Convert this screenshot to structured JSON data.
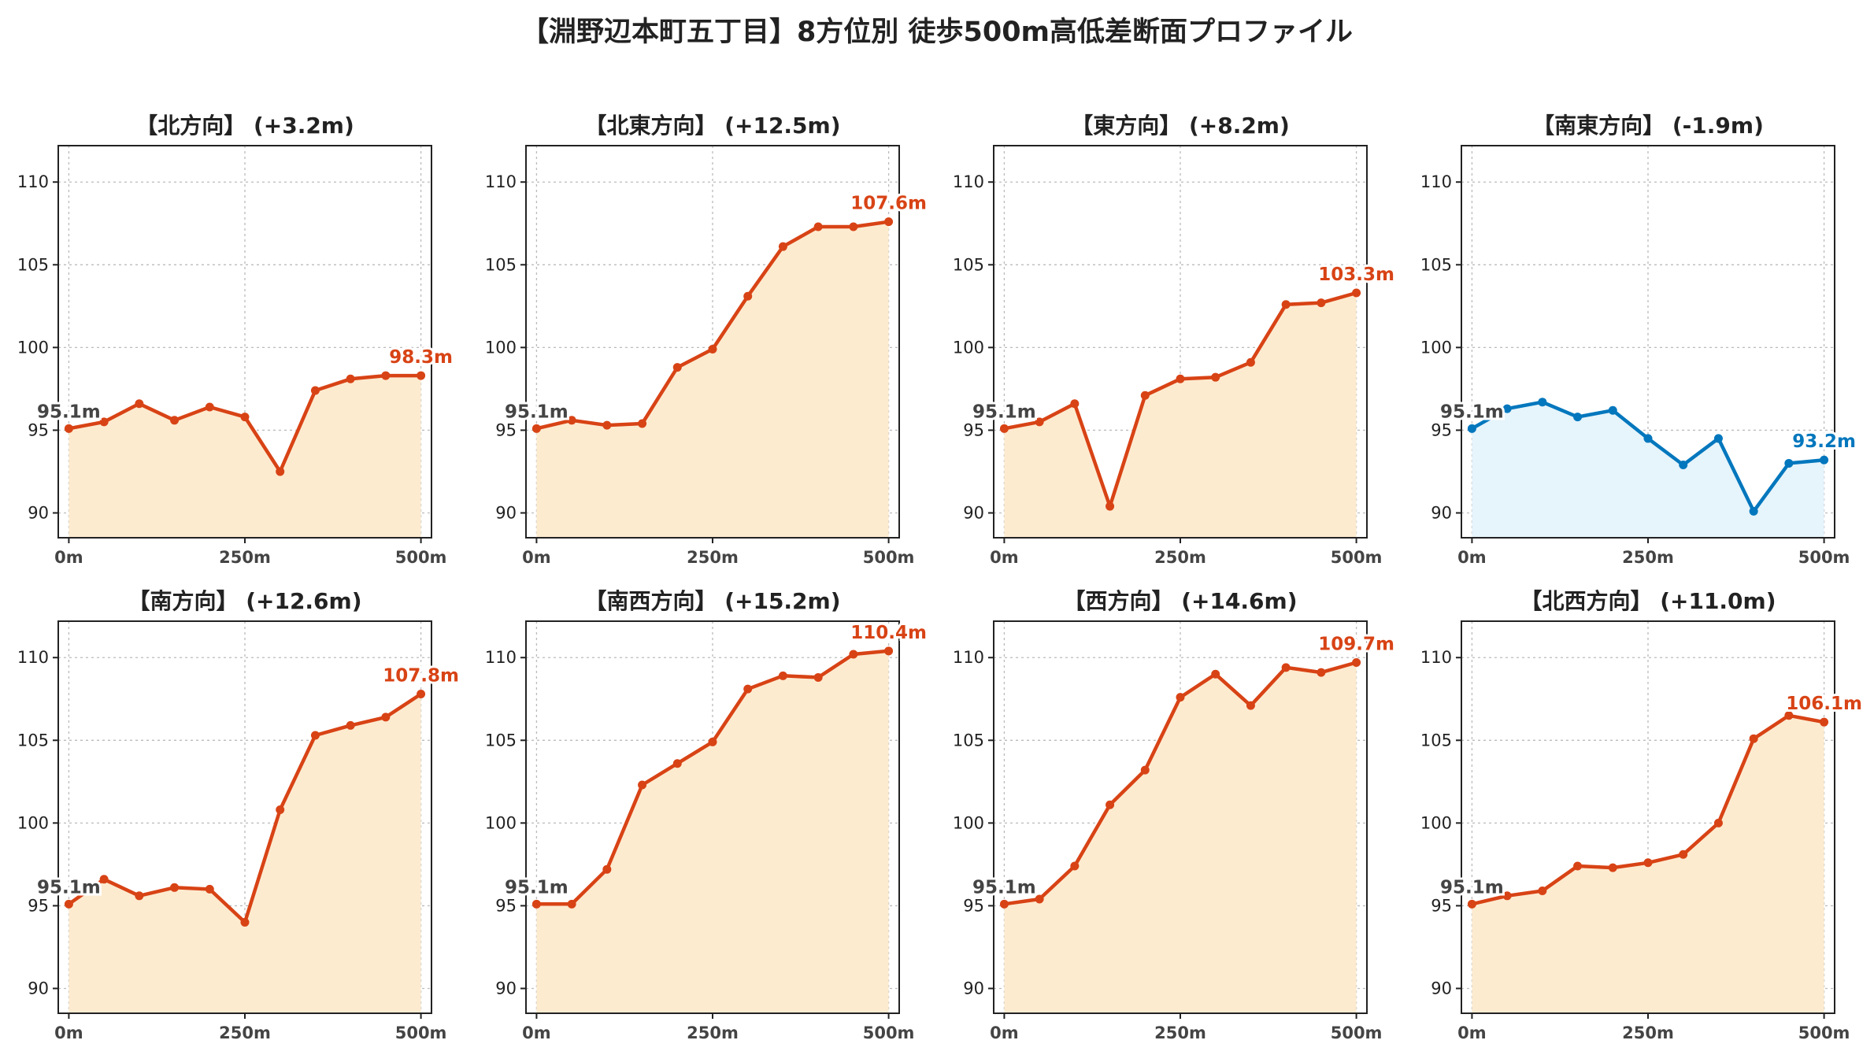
{
  "title": "【淵野辺本町五丁目】8方位別 徒歩500m高低差断面プロファイル",
  "colors": {
    "up_line": "#d84315",
    "up_fill": "#fdebd0",
    "down_line": "#0277bd",
    "down_fill": "#e6f4fb",
    "start_label": "#444444"
  },
  "chart_data": [
    {
      "type": "area",
      "title": "【北方向】 (+3.2m)",
      "x": [
        0,
        50,
        100,
        150,
        200,
        250,
        300,
        350,
        400,
        450,
        500
      ],
      "x_tick_values": [
        0,
        250,
        500
      ],
      "x_tick_labels": [
        "0m",
        "250m",
        "500m"
      ],
      "y_tick_values": [
        90,
        95,
        100,
        105,
        110
      ],
      "y_tick_labels": [
        "90",
        "95",
        "100",
        "105",
        "110"
      ],
      "xlim": [
        -15,
        515
      ],
      "ylim": [
        88.5,
        112.2
      ],
      "grid": true,
      "trend": "up",
      "values": [
        95.1,
        95.5,
        96.6,
        95.6,
        96.4,
        95.8,
        92.5,
        97.4,
        98.1,
        98.3,
        98.3
      ],
      "start_label": "95.1m",
      "end_label": "98.3m"
    },
    {
      "type": "area",
      "title": "【北東方向】 (+12.5m)",
      "x": [
        0,
        50,
        100,
        150,
        200,
        250,
        300,
        350,
        400,
        450,
        500
      ],
      "x_tick_values": [
        0,
        250,
        500
      ],
      "x_tick_labels": [
        "0m",
        "250m",
        "500m"
      ],
      "y_tick_values": [
        90,
        95,
        100,
        105,
        110
      ],
      "y_tick_labels": [
        "90",
        "95",
        "100",
        "105",
        "110"
      ],
      "xlim": [
        -15,
        515
      ],
      "ylim": [
        88.5,
        112.2
      ],
      "grid": true,
      "trend": "up",
      "values": [
        95.1,
        95.6,
        95.3,
        95.4,
        98.8,
        99.9,
        103.1,
        106.1,
        107.3,
        107.3,
        107.6
      ],
      "start_label": "95.1m",
      "end_label": "107.6m"
    },
    {
      "type": "area",
      "title": "【東方向】 (+8.2m)",
      "x": [
        0,
        50,
        100,
        150,
        200,
        250,
        300,
        350,
        400,
        450,
        500
      ],
      "x_tick_values": [
        0,
        250,
        500
      ],
      "x_tick_labels": [
        "0m",
        "250m",
        "500m"
      ],
      "y_tick_values": [
        90,
        95,
        100,
        105,
        110
      ],
      "y_tick_labels": [
        "90",
        "95",
        "100",
        "105",
        "110"
      ],
      "xlim": [
        -15,
        515
      ],
      "ylim": [
        88.5,
        112.2
      ],
      "grid": true,
      "trend": "up",
      "values": [
        95.1,
        95.5,
        96.6,
        90.4,
        97.1,
        98.1,
        98.2,
        99.1,
        102.6,
        102.7,
        103.3
      ],
      "start_label": "95.1m",
      "end_label": "103.3m"
    },
    {
      "type": "area",
      "title": "【南東方向】 (-1.9m)",
      "x": [
        0,
        50,
        100,
        150,
        200,
        250,
        300,
        350,
        400,
        450,
        500
      ],
      "x_tick_values": [
        0,
        250,
        500
      ],
      "x_tick_labels": [
        "0m",
        "250m",
        "500m"
      ],
      "y_tick_values": [
        90,
        95,
        100,
        105,
        110
      ],
      "y_tick_labels": [
        "90",
        "95",
        "100",
        "105",
        "110"
      ],
      "xlim": [
        -15,
        515
      ],
      "ylim": [
        88.5,
        112.2
      ],
      "grid": true,
      "trend": "down",
      "values": [
        95.1,
        96.3,
        96.7,
        95.8,
        96.2,
        94.5,
        92.9,
        94.5,
        90.1,
        93.0,
        93.2
      ],
      "start_label": "95.1m",
      "end_label": "93.2m"
    },
    {
      "type": "area",
      "title": "【南方向】 (+12.6m)",
      "x": [
        0,
        50,
        100,
        150,
        200,
        250,
        300,
        350,
        400,
        450,
        500
      ],
      "x_tick_values": [
        0,
        250,
        500
      ],
      "x_tick_labels": [
        "0m",
        "250m",
        "500m"
      ],
      "y_tick_values": [
        90,
        95,
        100,
        105,
        110
      ],
      "y_tick_labels": [
        "90",
        "95",
        "100",
        "105",
        "110"
      ],
      "xlim": [
        -15,
        515
      ],
      "ylim": [
        88.5,
        112.2
      ],
      "grid": true,
      "trend": "up",
      "values": [
        95.1,
        96.6,
        95.6,
        96.1,
        96.0,
        94.0,
        100.8,
        105.3,
        105.9,
        106.4,
        107.8
      ],
      "start_label": "95.1m",
      "end_label": "107.8m"
    },
    {
      "type": "area",
      "title": "【南西方向】 (+15.2m)",
      "x": [
        0,
        50,
        100,
        150,
        200,
        250,
        300,
        350,
        400,
        450,
        500
      ],
      "x_tick_values": [
        0,
        250,
        500
      ],
      "x_tick_labels": [
        "0m",
        "250m",
        "500m"
      ],
      "y_tick_values": [
        90,
        95,
        100,
        105,
        110
      ],
      "y_tick_labels": [
        "90",
        "95",
        "100",
        "105",
        "110"
      ],
      "xlim": [
        -15,
        515
      ],
      "ylim": [
        88.5,
        112.2
      ],
      "grid": true,
      "trend": "up",
      "values": [
        95.1,
        95.1,
        97.2,
        102.3,
        103.6,
        104.9,
        108.1,
        108.9,
        108.8,
        110.2,
        110.4
      ],
      "start_label": "95.1m",
      "end_label": "110.4m"
    },
    {
      "type": "area",
      "title": "【西方向】 (+14.6m)",
      "x": [
        0,
        50,
        100,
        150,
        200,
        250,
        300,
        350,
        400,
        450,
        500
      ],
      "x_tick_values": [
        0,
        250,
        500
      ],
      "x_tick_labels": [
        "0m",
        "250m",
        "500m"
      ],
      "y_tick_values": [
        90,
        95,
        100,
        105,
        110
      ],
      "y_tick_labels": [
        "90",
        "95",
        "100",
        "105",
        "110"
      ],
      "xlim": [
        -15,
        515
      ],
      "ylim": [
        88.5,
        112.2
      ],
      "grid": true,
      "trend": "up",
      "values": [
        95.1,
        95.4,
        97.4,
        101.1,
        103.2,
        107.6,
        109.0,
        107.1,
        109.4,
        109.1,
        109.7
      ],
      "start_label": "95.1m",
      "end_label": "109.7m"
    },
    {
      "type": "area",
      "title": "【北西方向】 (+11.0m)",
      "x": [
        0,
        50,
        100,
        150,
        200,
        250,
        300,
        350,
        400,
        450,
        500
      ],
      "x_tick_values": [
        0,
        250,
        500
      ],
      "x_tick_labels": [
        "0m",
        "250m",
        "500m"
      ],
      "y_tick_values": [
        90,
        95,
        100,
        105,
        110
      ],
      "y_tick_labels": [
        "90",
        "95",
        "100",
        "105",
        "110"
      ],
      "xlim": [
        -15,
        515
      ],
      "ylim": [
        88.5,
        112.2
      ],
      "grid": true,
      "trend": "up",
      "values": [
        95.1,
        95.6,
        95.9,
        97.4,
        97.3,
        97.6,
        98.1,
        100.0,
        105.1,
        106.5,
        106.1
      ],
      "start_label": "95.1m",
      "end_label": "106.1m"
    }
  ]
}
